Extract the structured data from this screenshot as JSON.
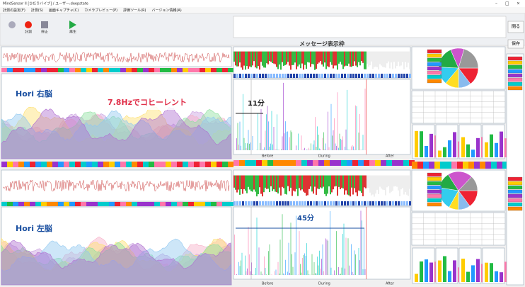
{
  "window": {
    "title": "MindSensor II [ひだりバイブ] / ユーザー:deepstate",
    "controls": [
      "–",
      "□",
      "×"
    ]
  },
  "menu": [
    "計測の設定(F)",
    "計測(S)",
    "画面キャプチャ(C)",
    "カメラプレビュー(P)",
    "評価ツール(R)",
    "バージョン情報(A)"
  ],
  "toolbar": {
    "buttons": [
      "計測",
      "停止",
      "再生"
    ]
  },
  "buttons": {
    "close": "閉る",
    "save": "保存"
  },
  "message_frame": "メッセージ表示枠",
  "panels": [
    {
      "label": "Hori 右脳",
      "annotation": "7.8Hzでコヒーレント",
      "duration": "11分"
    },
    {
      "label": "Hori 左脳",
      "duration": "45分"
    }
  ],
  "phases": [
    "Before",
    "During",
    "After"
  ]
}
